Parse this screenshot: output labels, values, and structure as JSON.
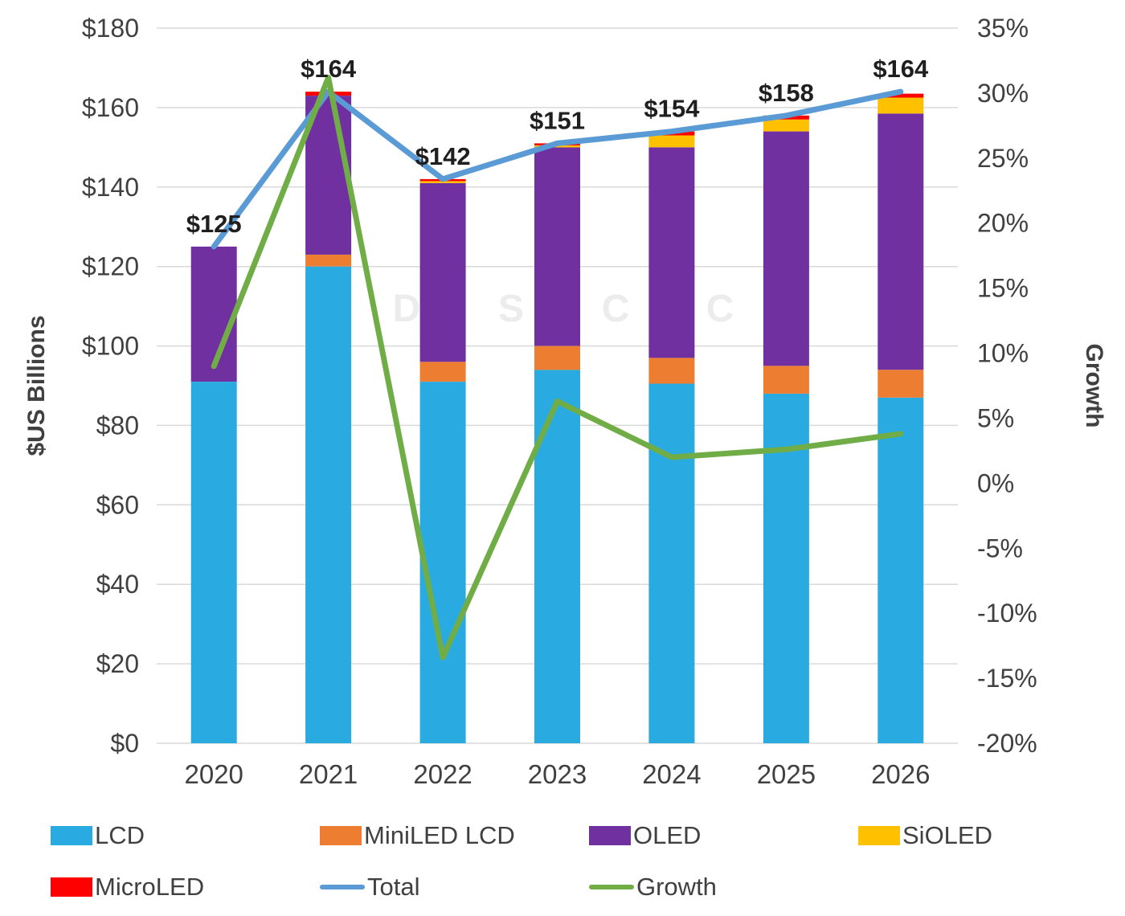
{
  "watermark": "DSCC",
  "text_color": "#404040",
  "chart_data": {
    "type": "combo-stacked-bar-line",
    "title": "",
    "categories": [
      "2020",
      "2021",
      "2022",
      "2023",
      "2024",
      "2025",
      "2026"
    ],
    "left_axis": {
      "title": "$US Billions",
      "min": 0,
      "max": 180,
      "tick_values": [
        0,
        20,
        40,
        60,
        80,
        100,
        120,
        140,
        160,
        180
      ],
      "tick_labels": [
        "$0",
        "$20",
        "$40",
        "$60",
        "$80",
        "$100",
        "$120",
        "$140",
        "$160",
        "$180"
      ]
    },
    "right_axis": {
      "title": "Growth",
      "min": -20,
      "max": 35,
      "tick_values": [
        35,
        30,
        25,
        20,
        15,
        10,
        5,
        0,
        -5,
        -10,
        -15,
        -20
      ],
      "tick_labels": [
        "35%",
        "30%",
        "25%",
        "20%",
        "15%",
        "10%",
        "5%",
        "0%",
        "-5%",
        "-10%",
        "-15%",
        "-20%"
      ]
    },
    "bar_series": [
      {
        "name": "LCD",
        "color": "#29ABE2",
        "values": [
          91,
          120,
          91,
          94,
          90.5,
          88,
          87
        ]
      },
      {
        "name": "MiniLED LCD",
        "color": "#ED7D31",
        "values": [
          0,
          3,
          5,
          6,
          6.5,
          7,
          7
        ]
      },
      {
        "name": "OLED",
        "color": "#7030A0",
        "values": [
          34,
          40,
          45,
          50,
          53,
          59,
          64.5
        ]
      },
      {
        "name": "SiOLED",
        "color": "#FFC000",
        "values": [
          0,
          0,
          0.5,
          0.5,
          3,
          3,
          4
        ]
      },
      {
        "name": "MicroLED",
        "color": "#FF0000",
        "values": [
          0,
          1,
          0.5,
          0.5,
          1,
          1,
          1
        ]
      }
    ],
    "line_series": [
      {
        "name": "Total",
        "axis": "left",
        "color": "#5B9BD5",
        "values": [
          125,
          164,
          142,
          151,
          154,
          158,
          164
        ]
      },
      {
        "name": "Growth",
        "axis": "right",
        "color": "#70AD47",
        "values": [
          9.0,
          31.2,
          -13.4,
          6.3,
          2.0,
          2.6,
          3.8
        ]
      }
    ],
    "total_labels": [
      "$125",
      "$164",
      "$142",
      "$151",
      "$154",
      "$158",
      "$164"
    ],
    "grid": true,
    "legend_position": "bottom"
  },
  "legend": {
    "rows": [
      [
        {
          "label": "LCD",
          "swatch": "rect",
          "color": "#29ABE2"
        },
        {
          "label": "MiniLED LCD",
          "swatch": "rect",
          "color": "#ED7D31"
        },
        {
          "label": "OLED",
          "swatch": "rect",
          "color": "#7030A0"
        },
        {
          "label": "SiOLED",
          "swatch": "rect",
          "color": "#FFC000"
        }
      ],
      [
        {
          "label": "MicroLED",
          "swatch": "rect",
          "color": "#FF0000"
        },
        {
          "label": "Total",
          "swatch": "line",
          "color": "#5B9BD5"
        },
        {
          "label": "Growth",
          "swatch": "line",
          "color": "#70AD47"
        }
      ]
    ]
  }
}
